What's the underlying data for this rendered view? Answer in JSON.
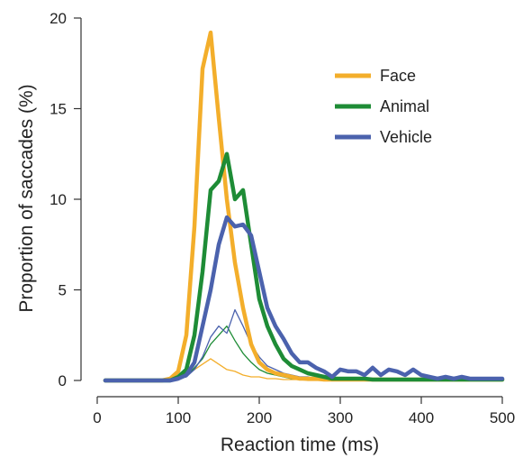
{
  "chart_data": {
    "type": "line",
    "xlabel": "Reaction time (ms)",
    "ylabel": "Proportion of saccades (%)",
    "xlim": [
      0,
      500
    ],
    "ylim": [
      0,
      20
    ],
    "xticks": [
      0,
      100,
      200,
      300,
      400,
      500
    ],
    "yticks": [
      0,
      5,
      10,
      15,
      20
    ],
    "grid": false,
    "legend_position": "top-right",
    "legend": [
      {
        "name": "Face",
        "color": "#f3ae2b"
      },
      {
        "name": "Animal",
        "color": "#1e8c36"
      },
      {
        "name": "Vehicle",
        "color": "#4b62ad"
      }
    ],
    "series": [
      {
        "name": "Face",
        "color": "#f3ae2b",
        "weight": "thick",
        "x": [
          10,
          20,
          30,
          40,
          50,
          60,
          70,
          80,
          90,
          100,
          110,
          120,
          130,
          140,
          150,
          160,
          170,
          180,
          190,
          200,
          210,
          220,
          230,
          240,
          250,
          260,
          270,
          280,
          290,
          300,
          310,
          320,
          330,
          340,
          350,
          360,
          370,
          380,
          390,
          400,
          410,
          420,
          430,
          440,
          450,
          460,
          470,
          480,
          490,
          500
        ],
        "y": [
          0,
          0,
          0,
          0,
          0,
          0,
          0,
          0,
          0.1,
          0.5,
          2.5,
          8.5,
          17.2,
          19.2,
          14.5,
          10.0,
          6.5,
          4.0,
          2.0,
          1.0,
          0.6,
          0.4,
          0.3,
          0.2,
          0.1,
          0.1,
          0.1,
          0.05,
          0.05,
          0.05,
          0.05,
          0.05,
          0.05,
          0.05,
          0.05,
          0.05,
          0.05,
          0.05,
          0.05,
          0.05,
          0.05,
          0.05,
          0.05,
          0.05,
          0.05,
          0.05,
          0.05,
          0.05,
          0.05,
          0.05
        ]
      },
      {
        "name": "Face-error",
        "color": "#f3ae2b",
        "weight": "thin",
        "x": [
          10,
          20,
          30,
          40,
          50,
          60,
          70,
          80,
          90,
          100,
          110,
          120,
          130,
          140,
          150,
          160,
          170,
          180,
          190,
          200,
          210,
          220,
          230,
          240,
          250,
          260,
          270,
          280,
          290,
          300,
          310,
          320,
          330,
          340,
          350,
          360,
          370,
          380,
          390,
          400,
          410,
          420,
          430,
          440,
          450,
          460,
          470,
          480,
          490,
          500
        ],
        "y": [
          0,
          0,
          0,
          0,
          0,
          0,
          0,
          0,
          0,
          0.1,
          0.3,
          0.6,
          0.9,
          1.2,
          0.9,
          0.6,
          0.5,
          0.3,
          0.2,
          0.2,
          0.1,
          0.1,
          0.05,
          0.05,
          0.05,
          0,
          0,
          0,
          0,
          0,
          0,
          0,
          0,
          0,
          0,
          0,
          0,
          0,
          0,
          0,
          0,
          0,
          0,
          0,
          0,
          0,
          0,
          0,
          0,
          0
        ]
      },
      {
        "name": "Animal",
        "color": "#1e8c36",
        "weight": "thick",
        "x": [
          10,
          20,
          30,
          40,
          50,
          60,
          70,
          80,
          90,
          100,
          110,
          120,
          130,
          140,
          150,
          160,
          170,
          180,
          190,
          200,
          210,
          220,
          230,
          240,
          250,
          260,
          270,
          280,
          290,
          300,
          310,
          320,
          330,
          340,
          350,
          360,
          370,
          380,
          390,
          400,
          410,
          420,
          430,
          440,
          450,
          460,
          470,
          480,
          490,
          500
        ],
        "y": [
          0,
          0,
          0,
          0,
          0,
          0,
          0,
          0,
          0,
          0.2,
          0.6,
          2.5,
          6.0,
          10.5,
          11.0,
          12.5,
          10.0,
          10.5,
          7.5,
          4.5,
          3.0,
          2.0,
          1.2,
          0.8,
          0.6,
          0.4,
          0.3,
          0.2,
          0.1,
          0.1,
          0.1,
          0.1,
          0.1,
          0.05,
          0.05,
          0.05,
          0.05,
          0.05,
          0.05,
          0.05,
          0.05,
          0.05,
          0.05,
          0.05,
          0.05,
          0.05,
          0.05,
          0.05,
          0.05,
          0.05
        ]
      },
      {
        "name": "Animal-error",
        "color": "#1e8c36",
        "weight": "thin",
        "x": [
          10,
          20,
          30,
          40,
          50,
          60,
          70,
          80,
          90,
          100,
          110,
          120,
          130,
          140,
          150,
          160,
          170,
          180,
          190,
          200,
          210,
          220,
          230,
          240,
          250,
          260,
          270,
          280,
          290,
          300,
          310,
          320,
          330,
          340,
          350,
          360,
          370,
          380,
          390,
          400,
          410,
          420,
          430,
          440,
          450,
          460,
          470,
          480,
          490,
          500
        ],
        "y": [
          0,
          0,
          0,
          0,
          0,
          0,
          0,
          0,
          0,
          0.1,
          0.2,
          0.7,
          1.2,
          2.0,
          2.5,
          3.0,
          2.2,
          1.5,
          1.0,
          0.6,
          0.4,
          0.3,
          0.2,
          0.1,
          0.1,
          0.1,
          0.05,
          0.05,
          0,
          0,
          0,
          0,
          0,
          0,
          0,
          0,
          0,
          0,
          0,
          0,
          0,
          0,
          0,
          0,
          0,
          0,
          0,
          0,
          0,
          0
        ]
      },
      {
        "name": "Vehicle",
        "color": "#4b62ad",
        "weight": "thick",
        "x": [
          10,
          20,
          30,
          40,
          50,
          60,
          70,
          80,
          90,
          100,
          110,
          120,
          130,
          140,
          150,
          160,
          170,
          180,
          190,
          200,
          210,
          220,
          230,
          240,
          250,
          260,
          270,
          280,
          290,
          300,
          310,
          320,
          330,
          340,
          350,
          360,
          370,
          380,
          390,
          400,
          410,
          420,
          430,
          440,
          450,
          460,
          470,
          480,
          490,
          500
        ],
        "y": [
          0,
          0,
          0,
          0,
          0,
          0,
          0,
          0,
          0,
          0.1,
          0.3,
          1.0,
          3.0,
          5.0,
          7.5,
          9.0,
          8.5,
          8.6,
          8.0,
          6.0,
          4.0,
          3.0,
          2.3,
          1.5,
          1.0,
          1.0,
          0.7,
          0.5,
          0.2,
          0.6,
          0.5,
          0.5,
          0.3,
          0.7,
          0.3,
          0.6,
          0.5,
          0.3,
          0.6,
          0.3,
          0.2,
          0.1,
          0.2,
          0.1,
          0.2,
          0.1,
          0.1,
          0.1,
          0.1,
          0.1
        ]
      },
      {
        "name": "Vehicle-error",
        "color": "#4b62ad",
        "weight": "thin",
        "x": [
          10,
          20,
          30,
          40,
          50,
          60,
          70,
          80,
          90,
          100,
          110,
          120,
          130,
          140,
          150,
          160,
          170,
          180,
          190,
          200,
          210,
          220,
          230,
          240,
          250,
          260,
          270,
          280,
          290,
          300,
          310,
          320,
          330,
          340,
          350,
          360,
          370,
          380,
          390,
          400,
          410,
          420,
          430,
          440,
          450,
          460,
          470,
          480,
          490,
          500
        ],
        "y": [
          0,
          0,
          0,
          0,
          0,
          0,
          0,
          0,
          0,
          0.1,
          0.2,
          0.6,
          1.3,
          2.4,
          3.0,
          2.6,
          3.9,
          3.0,
          2.0,
          1.3,
          0.8,
          0.6,
          0.4,
          0.3,
          0.2,
          0.2,
          0.1,
          0.1,
          0.1,
          0.1,
          0.1,
          0.1,
          0.05,
          0.05,
          0.05,
          0.05,
          0.05,
          0.05,
          0.05,
          0.05,
          0.05,
          0.05,
          0.05,
          0.05,
          0.05,
          0.05,
          0.05,
          0.05,
          0.05,
          0.05
        ]
      }
    ]
  }
}
